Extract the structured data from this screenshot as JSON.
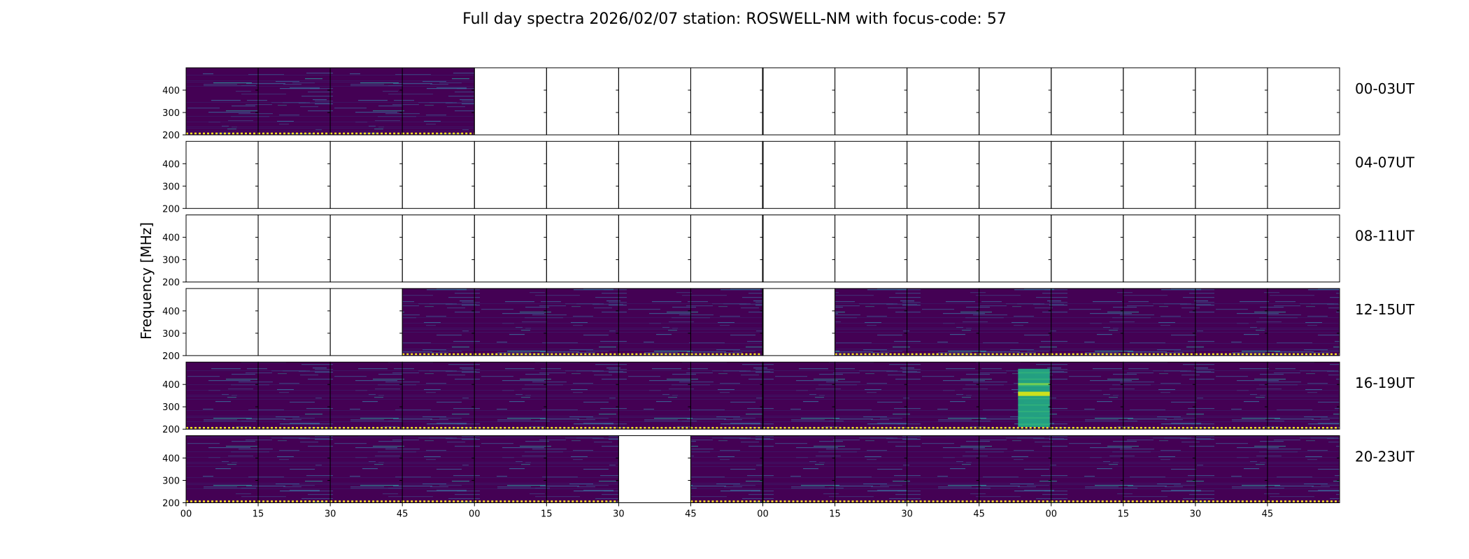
{
  "chart_data": {
    "type": "heatmap",
    "title": "Full day spectra 2026/02/07 station: ROSWELL-NM with focus-code: 57",
    "ylabel": "Frequency [MHz]",
    "xlabel": "",
    "ytick_labels": [
      "400",
      "300",
      "200"
    ],
    "ylim": [
      200,
      500
    ],
    "xtick_labels": [
      "00",
      "15",
      "30",
      "45",
      "00",
      "15",
      "30",
      "45",
      "00",
      "15",
      "30",
      "45",
      "00",
      "15",
      "30",
      "45"
    ],
    "colormap": "viridis",
    "colors": {
      "background": "#440154",
      "background_alt": "#3b1f6b",
      "line_light": "#3a6fa0",
      "line_bright": "#2aa8a0",
      "burst": "#22a884",
      "burst_peak": "#cde11d",
      "baseline": "#fde725"
    },
    "rows": [
      {
        "label": "00-03UT",
        "filled": [
          true,
          true,
          true,
          true,
          false,
          false,
          false,
          false,
          false,
          false,
          false,
          false,
          false,
          false,
          false,
          false
        ]
      },
      {
        "label": "04-07UT",
        "filled": [
          false,
          false,
          false,
          false,
          false,
          false,
          false,
          false,
          false,
          false,
          false,
          false,
          false,
          false,
          false,
          false
        ]
      },
      {
        "label": "08-11UT",
        "filled": [
          false,
          false,
          false,
          false,
          false,
          false,
          false,
          false,
          false,
          false,
          false,
          false,
          false,
          false,
          false,
          false
        ]
      },
      {
        "label": "12-15UT",
        "filled": [
          false,
          false,
          false,
          true,
          true,
          true,
          true,
          true,
          false,
          true,
          true,
          true,
          true,
          true,
          true,
          true
        ]
      },
      {
        "label": "16-19UT",
        "filled": [
          true,
          true,
          true,
          true,
          true,
          true,
          true,
          true,
          true,
          true,
          true,
          true,
          true,
          true,
          true,
          true
        ],
        "burst_panel": 11
      },
      {
        "label": "20-23UT",
        "filled": [
          true,
          true,
          true,
          true,
          true,
          true,
          false,
          true,
          true,
          true,
          true,
          true,
          true,
          true,
          true,
          true
        ]
      }
    ]
  }
}
